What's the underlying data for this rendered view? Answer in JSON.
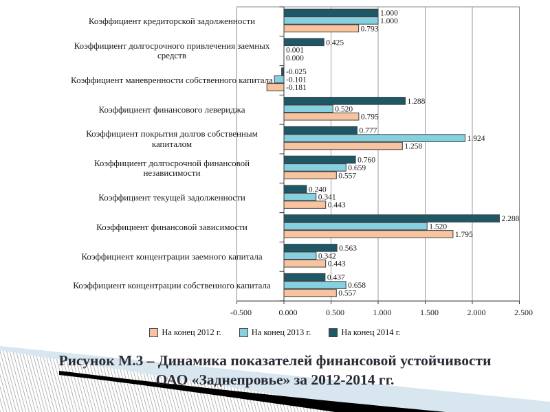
{
  "chart_data": {
    "type": "bar",
    "orientation": "horizontal",
    "title": "",
    "categories": [
      "Коэффициент кредиторской задолженности",
      "Коэффициент долгосрочного привлечения заемных средств",
      "Коэффициент маневренности собственного капитала",
      "Коэффициент финансового левериджа",
      "Коэффициент покрытия долгов собственным капиталом",
      "Коэффициент долгосрочной финансовой независимости",
      "Коэффициент текущей задолженности",
      "Коэффициент финансовой зависимости",
      "Коэффициент концентрации заемного капитала",
      "Коэффициент концентрации собственного капитала"
    ],
    "series": [
      {
        "name": "На конец 2012 г.",
        "color": "#F8C49F",
        "values": [
          0.793,
          0.0,
          -0.181,
          0.795,
          1.258,
          0.557,
          0.443,
          1.795,
          0.443,
          0.557
        ]
      },
      {
        "name": "На конец 2013 г.",
        "color": "#86D0E0",
        "values": [
          1.0,
          0.001,
          -0.101,
          0.52,
          1.924,
          0.659,
          0.341,
          1.52,
          0.342,
          0.658
        ]
      },
      {
        "name": "На конец 2014 г.",
        "color": "#1E5866",
        "values": [
          1.0,
          0.425,
          -0.025,
          1.288,
          0.777,
          0.76,
          0.24,
          2.288,
          0.563,
          0.437
        ]
      }
    ],
    "xlim": [
      -0.5,
      2.5
    ],
    "xticks": [
      -0.5,
      0,
      0.5,
      1,
      1.5,
      2,
      2.5
    ],
    "xtick_labels": [
      "-0.500",
      "0.000",
      "0.500",
      "1.000",
      "1.500",
      "2.000",
      "2.500"
    ],
    "value_labels_decimals": 3,
    "gridlines": true,
    "legend_position": "bottom",
    "bar_outline_color": "#3f3f3f",
    "grid_color": "#9a9a9a",
    "axis_color": "#3a3a3a",
    "border_color": "#8a8a8a"
  },
  "caption": {
    "line1": "Рисунок М.3 – Динамика показателей финансовой устойчивости",
    "line2": "ОАО «Заднепровье» за 2012-2014 гг."
  },
  "decor": {
    "blue": "#D7E6EF",
    "black": "#000000"
  }
}
